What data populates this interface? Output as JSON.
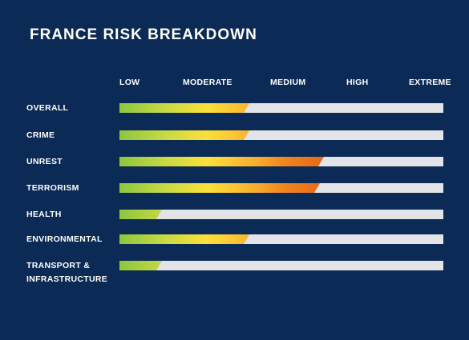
{
  "title": "FRANCE RISK BREAKDOWN",
  "chart_data": {
    "type": "bar",
    "title": "FRANCE RISK BREAKDOWN",
    "scale": [
      "LOW",
      "MODERATE",
      "MEDIUM",
      "HIGH",
      "EXTREME"
    ],
    "categories": [
      "OVERALL",
      "CRIME",
      "UNREST",
      "TERRORISM",
      "HEALTH",
      "ENVIRONMENTAL",
      "TRANSPORT & INFRASTRUCTURE"
    ],
    "category_lines": [
      [
        "OVERALL"
      ],
      [
        "CRIME"
      ],
      [
        "UNREST"
      ],
      [
        "TERRORISM"
      ],
      [
        "HEALTH"
      ],
      [
        "ENVIRONMENTAL"
      ],
      [
        "TRANSPORT &",
        "INFRASTRUCTURE"
      ]
    ],
    "values": [
      0.4,
      0.4,
      0.63,
      0.62,
      0.13,
      0.4,
      0.13
    ],
    "value_units": "fraction of scale (0 = low end, 1 = extreme end)",
    "colors": {
      "background": "#0b2a55",
      "track": "#e3e4e7",
      "gradient_low": "#8dc63f",
      "gradient_mid": "#fbe03a",
      "gradient_high": "#f0891f"
    }
  }
}
